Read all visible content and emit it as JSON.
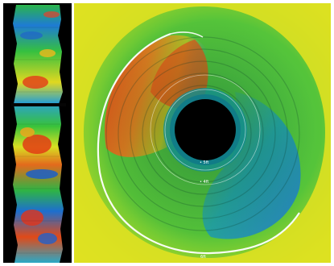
{
  "viewer": {
    "ring_labels": [
      "• 5ft",
      "• 4ft",
      "6ft"
    ]
  },
  "colors": {
    "background": "#ffffff",
    "bore": "#000000",
    "heat_red": "#d8261a",
    "heat_orange": "#f08a1e",
    "heat_yellow": "#e7e61f",
    "heat_green": "#36c232",
    "heat_teal": "#19a39a",
    "heat_blue": "#1f6fcf"
  },
  "icons": {
    "bore_hole": "black-circle",
    "measurement_ring": "white-arc"
  }
}
